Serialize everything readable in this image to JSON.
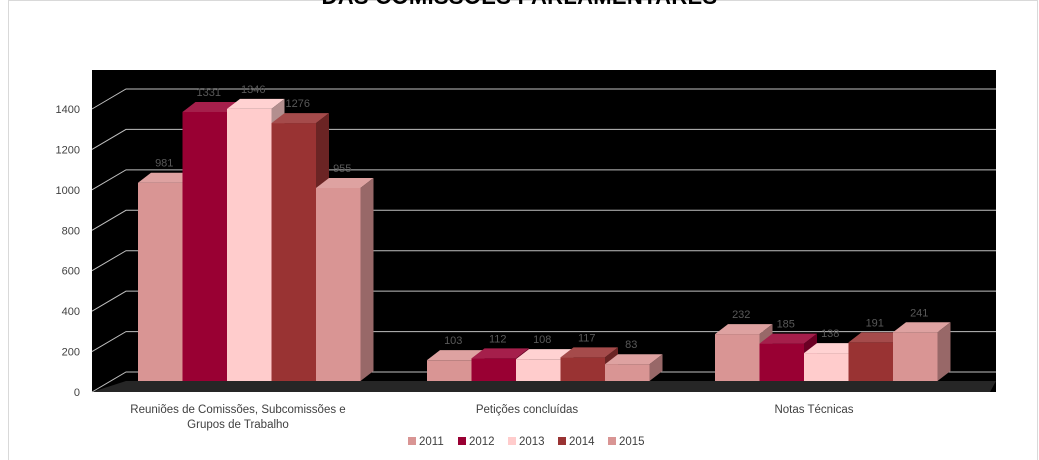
{
  "chart_data": {
    "type": "bar",
    "title": "DAS COMISSÕES PARLAMENTARES",
    "categories": [
      [
        "Reuniões de Comissões, Subcomissões e",
        "Grupos de Trabalho"
      ],
      [
        "Petições concluídas"
      ],
      [
        "Notas Técnicas"
      ]
    ],
    "series": [
      {
        "name": "2011",
        "values": [
          981,
          103,
          232
        ],
        "color": "#d99594"
      },
      {
        "name": "2012",
        "values": [
          1331,
          112,
          185
        ],
        "color": "#990033"
      },
      {
        "name": "2013",
        "values": [
          1346,
          108,
          138
        ],
        "color": "#ffcccc"
      },
      {
        "name": "2014",
        "values": [
          1276,
          117,
          191
        ],
        "color": "#993333"
      },
      {
        "name": "2015",
        "values": [
          955,
          83,
          241
        ],
        "color": "#d99594"
      }
    ],
    "y_ticks": [
      "0",
      "200",
      "400",
      "600",
      "800",
      "1000",
      "1200",
      "1400"
    ],
    "ylim": [
      0,
      1400
    ],
    "grid": true,
    "legend_position": "bottom",
    "colors": {
      "plot_background": "#000000",
      "gridline": "#bfbfbf",
      "floor": "#808080"
    }
  }
}
